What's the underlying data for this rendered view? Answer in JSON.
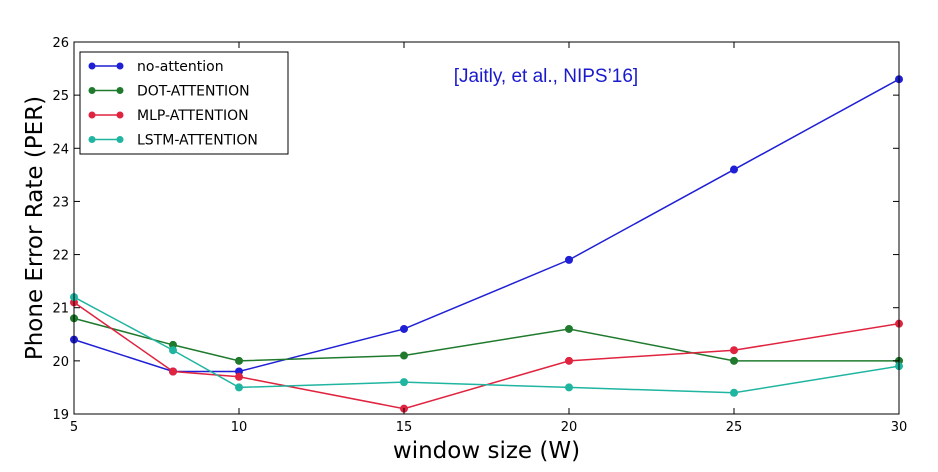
{
  "chart_data": {
    "type": "line",
    "title": "",
    "xlabel": "window size (W)",
    "ylabel": "Phone Error Rate (PER)",
    "x": [
      5,
      8,
      10,
      15,
      20,
      25,
      30
    ],
    "xticks": [
      5,
      10,
      15,
      20,
      25,
      30
    ],
    "yticks": [
      19,
      20,
      21,
      22,
      23,
      24,
      25,
      26
    ],
    "xlim": [
      5,
      30
    ],
    "ylim": [
      19,
      26
    ],
    "grid": false,
    "legend_position": "top-left",
    "annotation": "[Jaitly, et al., NIPS’16]",
    "annotation_color": "#1a1acc",
    "series": [
      {
        "name": "no-attention",
        "color": "#1f1fd6",
        "values": [
          20.4,
          19.8,
          19.8,
          20.6,
          21.9,
          23.6,
          25.3
        ]
      },
      {
        "name": "DOT-ATTENTION",
        "color": "#1f7a2e",
        "values": [
          20.8,
          20.3,
          20.0,
          20.1,
          20.6,
          20.0,
          20.0
        ]
      },
      {
        "name": "MLP-ATTENTION",
        "color": "#e0233f",
        "values": [
          21.1,
          19.8,
          19.7,
          19.1,
          20.0,
          20.2,
          20.7
        ]
      },
      {
        "name": "LSTM-ATTENTION",
        "color": "#1fb5a0",
        "values": [
          21.2,
          20.2,
          19.5,
          19.6,
          19.5,
          19.4,
          19.9
        ]
      }
    ]
  }
}
